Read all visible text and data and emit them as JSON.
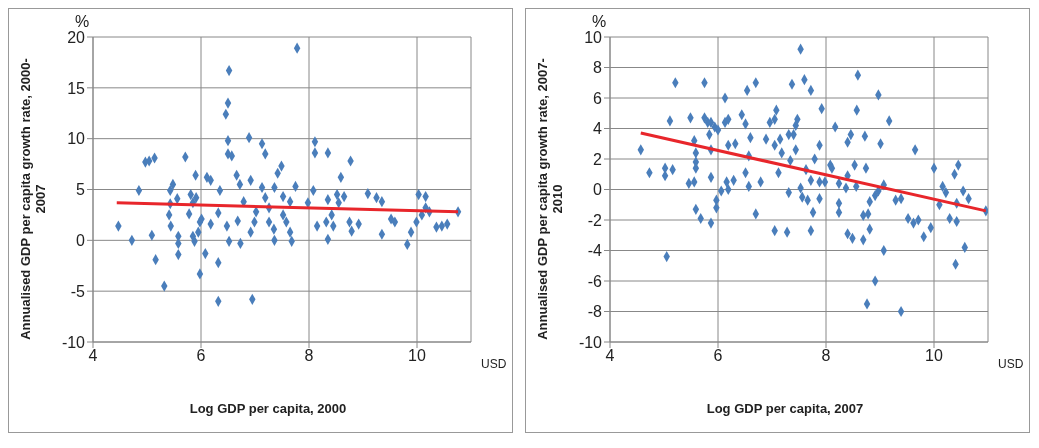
{
  "chart_data": [
    {
      "type": "scatter",
      "xlabel": "Log  GDP per capita, 2000",
      "ylabel": "Annualised GDP per capita growth rate, 2000-2007",
      "annotations": [
        "%",
        "USD"
      ],
      "xlim": [
        4,
        11
      ],
      "xticks": [
        4,
        6,
        8,
        10
      ],
      "ylim": [
        -10,
        20
      ],
      "yticks": [
        -10,
        -5,
        0,
        5,
        10,
        15,
        20
      ],
      "grid": true,
      "marker": "diamond",
      "series": [
        {
          "color": "#4a7ebb",
          "x": [
            4.47,
            4.72,
            4.85,
            4.97,
            5.04,
            5.14,
            5.09,
            5.16,
            5.32,
            5.41,
            5.43,
            5.44,
            5.43,
            5.48,
            5.56,
            5.58,
            5.58,
            5.58,
            5.71,
            5.78,
            5.81,
            5.85,
            5.9,
            5.91,
            5.85,
            5.88,
            5.95,
            5.98,
            6.01,
            5.98,
            6.08,
            6.11,
            6.18,
            6.18,
            6.32,
            6.35,
            6.32,
            6.32,
            6.48,
            6.52,
            6.52,
            6.5,
            6.46,
            6.5,
            6.5,
            6.57,
            6.66,
            6.72,
            6.68,
            6.73,
            6.79,
            6.89,
            6.92,
            6.95,
            6.92,
            6.99,
            7.02,
            7.13,
            7.19,
            7.13,
            7.19,
            7.26,
            7.26,
            7.36,
            7.36,
            7.42,
            7.49,
            7.78,
            7.75,
            7.52,
            7.65,
            7.35,
            7.58,
            7.65,
            7.68,
            7.52,
            8.11,
            8.11,
            8.35,
            8.08,
            7.98,
            8.35,
            8.52,
            8.65,
            8.55,
            8.15,
            8.32,
            8.42,
            8.45,
            8.35,
            8.59,
            8.77,
            8.75,
            8.79,
            8.92,
            9.09,
            9.25,
            9.35,
            9.35,
            9.52,
            9.59,
            9.82,
            9.89,
            9.99,
            10.09,
            10.16,
            10.23,
            10.03,
            10.16,
            10.36,
            10.46,
            10.56,
            10.76
          ],
          "values": [
            1.4,
            0,
            4.9,
            7.7,
            7.8,
            8.1,
            0.5,
            -1.9,
            -4.5,
            2.5,
            3.6,
            1.4,
            4.9,
            5.5,
            4.1,
            0.4,
            -0.3,
            -1.4,
            8.2,
            2.6,
            4.5,
            3.7,
            6.4,
            4.2,
            0.4,
            -0.1,
            0.8,
            1.8,
            2.1,
            -3.3,
            -1.3,
            6.2,
            5.9,
            1.6,
            2.7,
            4.9,
            -2.2,
            -6,
            1.4,
            -0.1,
            16.7,
            13.5,
            12.4,
            9.8,
            8.5,
            8.3,
            6.4,
            5.5,
            1.9,
            -0.3,
            3.8,
            10.1,
            5.9,
            -5.8,
            0.8,
            1.8,
            2.8,
            9.5,
            8.5,
            5.2,
            4.2,
            3.2,
            1.8,
            0,
            5.2,
            6.6,
            7.3,
            18.9,
            5.3,
            4.3,
            3.8,
            1.1,
            1.8,
            0.8,
            -0.1,
            2.5,
            9.7,
            8.6,
            8.6,
            4.9,
            3.7,
            4,
            4.5,
            4.3,
            3.7,
            1.4,
            1.8,
            2.5,
            1.4,
            0.1,
            6.2,
            7.8,
            1.8,
            0.9,
            1.6,
            4.6,
            4.2,
            3.8,
            0.6,
            2.1,
            1.8,
            -0.4,
            0.8,
            1.8,
            2.5,
            3.2,
            2.8,
            4.5,
            4.3,
            1.3,
            1.4,
            1.6,
            2.8
          ]
        },
        {
          "type": "line",
          "color": "#e8262b",
          "marker": "none",
          "line_style": "solid",
          "x": [
            4.44,
            10.76
          ],
          "values": [
            3.7,
            2.8
          ]
        }
      ]
    },
    {
      "type": "scatter",
      "xlabel": "Log  GDP per capita, 2007",
      "ylabel": "Annualised GDP per capita growth rate, 2007-2010",
      "annotations": [
        "%",
        "USD"
      ],
      "xlim": [
        4,
        11
      ],
      "xticks": [
        4,
        6,
        8,
        10
      ],
      "ylim": [
        -10,
        10
      ],
      "yticks": [
        -10,
        -8,
        -6,
        -4,
        -2,
        0,
        2,
        4,
        6,
        8,
        10
      ],
      "grid": true,
      "marker": "diamond",
      "series": [
        {
          "color": "#4a7ebb",
          "x": [
            4.57,
            4.73,
            5.02,
            5.02,
            5.16,
            5.11,
            5.21,
            5.05,
            5.49,
            5.56,
            5.59,
            5.59,
            5.59,
            5.46,
            5.56,
            5.59,
            5.68,
            5.75,
            5.75,
            5.81,
            5.87,
            5.94,
            5.84,
            5.87,
            5.87,
            5.87,
            5.97,
            5.97,
            6.06,
            6,
            6.13,
            6.13,
            6.19,
            6.16,
            6.19,
            6.29,
            6.19,
            6.32,
            6.44,
            6.51,
            6.54,
            6.7,
            6.51,
            6.57,
            6.57,
            6.6,
            6.7,
            6.79,
            7.53,
            7.37,
            7.6,
            7.72,
            7.08,
            7.05,
            6.96,
            7.47,
            7.44,
            7.4,
            7.31,
            6.89,
            7.05,
            7.15,
            7.44,
            7.18,
            7.34,
            7.12,
            7.05,
            7.28,
            7.31,
            7.53,
            7.56,
            7.66,
            7.76,
            7.72,
            7.88,
            7.63,
            7.72,
            7.79,
            7.88,
            7.92,
            7.88,
            7.98,
            8.08,
            8.11,
            8.17,
            8.24,
            8.37,
            8.4,
            8.24,
            8.24,
            8.4,
            8.46,
            8.53,
            8.56,
            8.59,
            8.57,
            8.72,
            8.74,
            8.4,
            8.49,
            8.69,
            8.69,
            8.78,
            8.81,
            8.81,
            8.91,
            8.97,
            9.07,
            8.97,
            9.01,
            9.17,
            9.07,
            8.91,
            8.76,
            9.39,
            9.29,
            9.39,
            9.52,
            9.62,
            9.71,
            9.65,
            9.81,
            9.94,
            10,
            10.1,
            10.16,
            10.22,
            10.42,
            10.29,
            10.42,
            10.38,
            10.45,
            10.54,
            10.64,
            10.57,
            10.4,
            10.96
          ],
          "values": [
            2.6,
            1.1,
            0.9,
            1.4,
            1.3,
            4.5,
            7,
            -4.4,
            4.7,
            3.2,
            2.4,
            1.8,
            1.4,
            0.4,
            0.5,
            -1.3,
            -1.9,
            7,
            4.7,
            4.4,
            4.4,
            4.1,
            3.6,
            2.6,
            -2.2,
            0.8,
            -0.7,
            -1.2,
            -0.1,
            3.9,
            6,
            4.4,
            4.6,
            0.5,
            0,
            0.6,
            2.9,
            3,
            4.9,
            4.3,
            6.5,
            7,
            1.1,
            0.2,
            2.2,
            3.4,
            -1.6,
            0.5,
            9.2,
            6.9,
            7.2,
            6.5,
            5.2,
            4.6,
            4.4,
            4.6,
            4.2,
            3.6,
            3.6,
            3.3,
            2.9,
            3.3,
            2.6,
            2.4,
            1.9,
            1.1,
            -2.7,
            -2.8,
            -0.2,
            0.1,
            -0.5,
            -0.7,
            -1.5,
            -2.7,
            -0.6,
            1.3,
            0.6,
            2,
            2.9,
            5.3,
            0.5,
            0.5,
            1.6,
            1.4,
            4.1,
            0.4,
            0.1,
            0.9,
            -0.9,
            -1.5,
            3.1,
            3.6,
            1.6,
            0.2,
            7.5,
            5.2,
            3.5,
            1.4,
            -2.9,
            -3.2,
            -3.3,
            -1.7,
            -1.6,
            -2.6,
            -0.8,
            -0.4,
            -0.1,
            0.3,
            6.2,
            3,
            4.5,
            -4,
            -6,
            -7.5,
            -8,
            -0.7,
            -0.6,
            -1.9,
            -2.2,
            -2,
            2.6,
            -3.1,
            -2.5,
            1.4,
            -1,
            0.2,
            -0.2,
            -0.9,
            -1.9,
            -2.1,
            1,
            1.6,
            -0.1,
            -0.6,
            -3.8,
            -4.9,
            -1.4
          ]
        },
        {
          "type": "line",
          "color": "#e8262b",
          "marker": "none",
          "line_style": "solid",
          "x": [
            4.57,
            10.96
          ],
          "values": [
            3.7,
            -1.4
          ]
        }
      ]
    }
  ]
}
